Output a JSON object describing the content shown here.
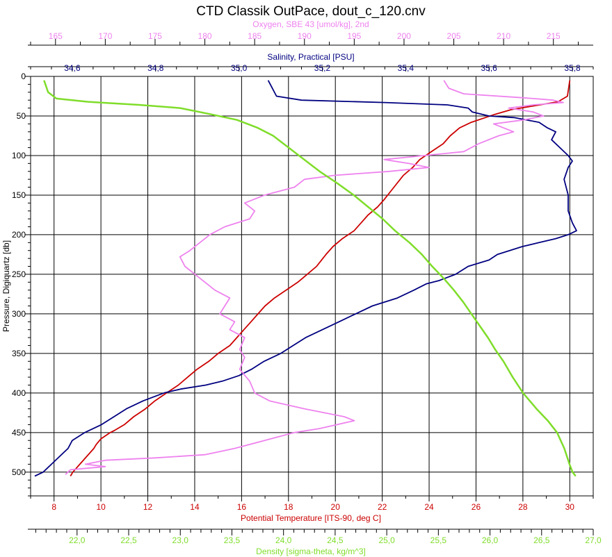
{
  "chart_data": {
    "type": "line",
    "title": "CTD Classik OutPace, dout_c_120.cnv",
    "grid": true,
    "y_axis": {
      "label": "Pressure, Digiquartz [db]",
      "range": [
        530,
        0
      ],
      "ticks": [
        0,
        50,
        100,
        150,
        200,
        250,
        300,
        350,
        400,
        450,
        500
      ],
      "inverted": true
    },
    "x_axes": [
      {
        "id": "oxygen",
        "label": "Oxygen, SBE 43 [umol/kg], 2nd",
        "position": "top-outer",
        "color": "#ee82ee",
        "range": [
          162.5,
          219
        ],
        "ticks": [
          "165",
          "170",
          "175",
          "180",
          "185",
          "190",
          "195",
          "200",
          "205",
          "210",
          "215"
        ],
        "tick_values": [
          165,
          170,
          175,
          180,
          185,
          190,
          195,
          200,
          205,
          210,
          215
        ]
      },
      {
        "id": "salinity",
        "label": "Salinity, Practical [PSU]",
        "position": "top-inner",
        "color": "#000080",
        "range": [
          34.5,
          35.85
        ],
        "ticks": [
          "34,6",
          "34,8",
          "35,0",
          "35,2",
          "35,4",
          "35,6",
          "35,8"
        ],
        "tick_values": [
          34.6,
          34.8,
          35.0,
          35.2,
          35.4,
          35.6,
          35.8
        ]
      },
      {
        "id": "temperature",
        "label": "Potential Temperature [ITS-90, deg C]",
        "position": "bottom-inner",
        "color": "#cc0000",
        "range": [
          7,
          31
        ],
        "ticks": [
          "8",
          "10",
          "12",
          "14",
          "16",
          "18",
          "20",
          "22",
          "24",
          "26",
          "28",
          "30"
        ],
        "tick_values": [
          8,
          10,
          12,
          14,
          16,
          18,
          20,
          22,
          24,
          26,
          28,
          30
        ]
      },
      {
        "id": "density",
        "label": "Density [sigma-theta, kg/m^3]",
        "position": "bottom-outer",
        "color": "#7fdd2a",
        "range": [
          21.55,
          27.0
        ],
        "ticks": [
          "22,0",
          "22,5",
          "23,0",
          "23,5",
          "24,0",
          "24,5",
          "25,0",
          "25,5",
          "26,0",
          "26,5",
          "27,0"
        ],
        "tick_values": [
          22.0,
          22.5,
          23.0,
          23.5,
          24.0,
          24.5,
          25.0,
          25.5,
          26.0,
          26.5,
          27.0
        ]
      }
    ],
    "series": [
      {
        "axis": "temperature",
        "color": "#cc0000",
        "points": [
          [
            30.0,
            5
          ],
          [
            29.95,
            15
          ],
          [
            29.9,
            25
          ],
          [
            29.5,
            32
          ],
          [
            28.5,
            37
          ],
          [
            27.5,
            42
          ],
          [
            26.8,
            48
          ],
          [
            26.4,
            52
          ],
          [
            25.8,
            58
          ],
          [
            25.3,
            65
          ],
          [
            24.9,
            75
          ],
          [
            24.6,
            85
          ],
          [
            24.1,
            95
          ],
          [
            23.6,
            105
          ],
          [
            23.3,
            115
          ],
          [
            22.9,
            125
          ],
          [
            22.5,
            140
          ],
          [
            22.1,
            155
          ],
          [
            21.8,
            165
          ],
          [
            21.4,
            175
          ],
          [
            21.1,
            185
          ],
          [
            20.8,
            195
          ],
          [
            20.3,
            205
          ],
          [
            19.9,
            215
          ],
          [
            19.6,
            225
          ],
          [
            19.2,
            240
          ],
          [
            18.8,
            250
          ],
          [
            18.4,
            260
          ],
          [
            17.9,
            270
          ],
          [
            17.4,
            280
          ],
          [
            17.0,
            290
          ],
          [
            16.7,
            300
          ],
          [
            16.4,
            310
          ],
          [
            16.1,
            320
          ],
          [
            15.8,
            330
          ],
          [
            15.5,
            340
          ],
          [
            15.0,
            350
          ],
          [
            14.6,
            360
          ],
          [
            14.1,
            370
          ],
          [
            13.7,
            380
          ],
          [
            13.3,
            390
          ],
          [
            12.8,
            400
          ],
          [
            12.3,
            410
          ],
          [
            11.9,
            420
          ],
          [
            11.4,
            430
          ],
          [
            11.0,
            440
          ],
          [
            10.6,
            447
          ],
          [
            10.4,
            450
          ],
          [
            10.0,
            458
          ],
          [
            9.8,
            465
          ],
          [
            9.7,
            470
          ],
          [
            9.4,
            480
          ],
          [
            9.1,
            490
          ],
          [
            8.8,
            500
          ],
          [
            8.7,
            505
          ]
        ]
      },
      {
        "axis": "salinity",
        "color": "#000080",
        "points": [
          [
            35.07,
            5
          ],
          [
            35.08,
            15
          ],
          [
            35.09,
            25
          ],
          [
            35.15,
            30
          ],
          [
            35.35,
            33
          ],
          [
            35.5,
            36
          ],
          [
            35.55,
            40
          ],
          [
            35.56,
            45
          ],
          [
            35.6,
            50
          ],
          [
            35.66,
            52
          ],
          [
            35.72,
            58
          ],
          [
            35.74,
            65
          ],
          [
            35.76,
            70
          ],
          [
            35.75,
            80
          ],
          [
            35.77,
            90
          ],
          [
            35.79,
            100
          ],
          [
            35.8,
            107
          ],
          [
            35.79,
            115
          ],
          [
            35.78,
            130
          ],
          [
            35.79,
            150
          ],
          [
            35.79,
            170
          ],
          [
            35.8,
            185
          ],
          [
            35.81,
            195
          ],
          [
            35.79,
            200
          ],
          [
            35.76,
            205
          ],
          [
            35.72,
            210
          ],
          [
            35.68,
            215
          ],
          [
            35.62,
            225
          ],
          [
            35.6,
            232
          ],
          [
            35.55,
            240
          ],
          [
            35.52,
            250
          ],
          [
            35.48,
            258
          ],
          [
            35.45,
            262
          ],
          [
            35.42,
            270
          ],
          [
            35.38,
            280
          ],
          [
            35.32,
            290
          ],
          [
            35.28,
            300
          ],
          [
            35.24,
            310
          ],
          [
            35.2,
            320
          ],
          [
            35.16,
            330
          ],
          [
            35.13,
            340
          ],
          [
            35.1,
            350
          ],
          [
            35.06,
            360
          ],
          [
            35.03,
            370
          ],
          [
            35.0,
            378
          ],
          [
            34.96,
            385
          ],
          [
            34.92,
            390
          ],
          [
            34.86,
            395
          ],
          [
            34.82,
            400
          ],
          [
            34.77,
            410
          ],
          [
            34.73,
            420
          ],
          [
            34.7,
            430
          ],
          [
            34.67,
            440
          ],
          [
            34.63,
            450
          ],
          [
            34.6,
            460
          ],
          [
            34.59,
            470
          ],
          [
            34.57,
            480
          ],
          [
            34.55,
            490
          ],
          [
            34.53,
            500
          ],
          [
            34.51,
            505
          ]
        ]
      },
      {
        "axis": "oxygen",
        "color": "#ee82ee",
        "points": [
          [
            204.0,
            5
          ],
          [
            204.5,
            15
          ],
          [
            206.0,
            22
          ],
          [
            212.0,
            27
          ],
          [
            215.0,
            30
          ],
          [
            216.0,
            33
          ],
          [
            213.0,
            36
          ],
          [
            210.5,
            40
          ],
          [
            213.0,
            45
          ],
          [
            214.0,
            50
          ],
          [
            212.0,
            55
          ],
          [
            209.0,
            60
          ],
          [
            211.0,
            70
          ],
          [
            209.5,
            75
          ],
          [
            207.5,
            85
          ],
          [
            206.0,
            95
          ],
          [
            202.0,
            100
          ],
          [
            198.0,
            105
          ],
          [
            200.5,
            110
          ],
          [
            202.5,
            115
          ],
          [
            198.5,
            120
          ],
          [
            193.0,
            125
          ],
          [
            190.0,
            130
          ],
          [
            189.0,
            140
          ],
          [
            186.0,
            150
          ],
          [
            184.0,
            160
          ],
          [
            185.0,
            170
          ],
          [
            184.5,
            180
          ],
          [
            182.0,
            190
          ],
          [
            180.5,
            200
          ],
          [
            179.5,
            210
          ],
          [
            178.5,
            220
          ],
          [
            177.5,
            228
          ],
          [
            178.0,
            240
          ],
          [
            179.5,
            255
          ],
          [
            181.0,
            270
          ],
          [
            182.5,
            280
          ],
          [
            182.0,
            290
          ],
          [
            181.5,
            300
          ],
          [
            183.0,
            310
          ],
          [
            182.5,
            320
          ],
          [
            184.0,
            330
          ],
          [
            183.5,
            345
          ],
          [
            184.0,
            355
          ],
          [
            183.5,
            370
          ],
          [
            184.5,
            385
          ],
          [
            185.0,
            400
          ],
          [
            186.5,
            410
          ],
          [
            190.0,
            420
          ],
          [
            194.0,
            430
          ],
          [
            195.0,
            435
          ],
          [
            191.5,
            445
          ],
          [
            189.0,
            450
          ],
          [
            186.0,
            460
          ],
          [
            183.0,
            470
          ],
          [
            180.0,
            478
          ],
          [
            175.0,
            482
          ],
          [
            170.0,
            485
          ],
          [
            168.0,
            490
          ],
          [
            170.0,
            493
          ],
          [
            166.5,
            497
          ],
          [
            166.0,
            503
          ]
        ]
      },
      {
        "axis": "density",
        "color": "#7fdd2a",
        "points": [
          [
            21.68,
            5
          ],
          [
            21.72,
            20
          ],
          [
            21.8,
            28
          ],
          [
            22.1,
            32
          ],
          [
            22.6,
            36
          ],
          [
            23.0,
            40
          ],
          [
            23.3,
            48
          ],
          [
            23.55,
            55
          ],
          [
            23.75,
            65
          ],
          [
            23.9,
            75
          ],
          [
            24.05,
            90
          ],
          [
            24.2,
            105
          ],
          [
            24.35,
            120
          ],
          [
            24.52,
            135
          ],
          [
            24.68,
            150
          ],
          [
            24.82,
            165
          ],
          [
            24.96,
            180
          ],
          [
            25.08,
            195
          ],
          [
            25.22,
            210
          ],
          [
            25.34,
            225
          ],
          [
            25.44,
            240
          ],
          [
            25.55,
            255
          ],
          [
            25.65,
            270
          ],
          [
            25.74,
            285
          ],
          [
            25.82,
            300
          ],
          [
            25.9,
            315
          ],
          [
            25.98,
            330
          ],
          [
            26.05,
            345
          ],
          [
            26.13,
            360
          ],
          [
            26.22,
            380
          ],
          [
            26.32,
            400
          ],
          [
            26.45,
            420
          ],
          [
            26.56,
            435
          ],
          [
            26.65,
            450
          ],
          [
            26.72,
            470
          ],
          [
            26.77,
            490
          ],
          [
            26.8,
            500
          ],
          [
            26.83,
            505
          ]
        ]
      }
    ]
  }
}
